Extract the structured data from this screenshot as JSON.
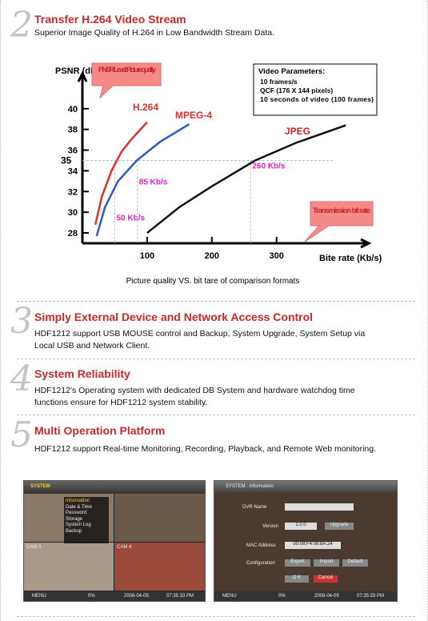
{
  "sections": [
    {
      "number": "2",
      "title": "Transfer H.264 Video Stream",
      "text": "Superior Image Quality of H.264  in Low Bandwidth Stream Data."
    },
    {
      "number": "3",
      "title": "Simply External Device and Network Access Control",
      "text": "HDF1212 support USB MOUSE control and Backup, System Upgrade, System Setup via Local USB and Network Client."
    },
    {
      "number": "4",
      "title": "System Reliability",
      "text": "HDF1212's Operating system with dedicated DB System and hardware watchdog time functions ensure for HDF1212 system stability."
    },
    {
      "number": "5",
      "title": "Multi Operation Platform",
      "text": "HDF1212 support Real-time Monitoring, Recording, Playback, and Remote Web monitoring."
    }
  ],
  "chart_data": {
    "type": "line",
    "caption": "Picture quality VS. bit tare of comparison formats",
    "y_label": "PSNR (dB)",
    "x_label": "Bite rate (Kb/s)",
    "xlim": [
      0,
      440
    ],
    "ylim": [
      27,
      43
    ],
    "xticks": [
      100,
      200,
      300
    ],
    "yticks": [
      28,
      30,
      32,
      34,
      36,
      38,
      40
    ],
    "reference_y": 35,
    "markers": [
      {
        "value": 50,
        "label": "50 Kb/s"
      },
      {
        "value": 85,
        "label": "85 Kb/s"
      },
      {
        "value": 260,
        "label": "260 Kb/s"
      }
    ],
    "series": [
      {
        "name": "H.264",
        "color": "#e0302a",
        "x": [
          20,
          30,
          45,
          60,
          75,
          100
        ],
        "values": [
          28.8,
          31.5,
          34,
          35.8,
          37,
          38.7
        ]
      },
      {
        "name": "MPEG-4",
        "color": "#2a5cc8",
        "x": [
          22,
          35,
          55,
          84,
          120,
          165
        ],
        "values": [
          27.7,
          30.5,
          33,
          35,
          36.8,
          38.5
        ]
      },
      {
        "name": "JPEG",
        "color": "#111111",
        "x": [
          100,
          150,
          200,
          267,
          330,
          407
        ],
        "values": [
          28,
          30.5,
          32.5,
          35,
          36.7,
          38.4
        ]
      }
    ],
    "callout_quality": "PNSR Level: Picture quality",
    "callout_rate": "Transmission bit rate",
    "params_title": "Video Parameters:",
    "params": [
      "10 frames/s",
      "QCF (176 X 144 pixels)",
      "10 seconds of video (100 frames)"
    ]
  },
  "screens": {
    "left": {
      "menu": "SYSTEM",
      "items": [
        "Information",
        "Date & Time",
        "Password",
        "Storage",
        "System Log",
        "Backup"
      ],
      "cam_a": "CAM 3",
      "cam_b": "CAM 4",
      "bar": [
        "MENU",
        "0%",
        "2008-04-09",
        "07:35:33 PM"
      ]
    },
    "right": {
      "title": "SYSTEM : Information",
      "dvr_name": "DVR Name",
      "version": "Version",
      "version_value": "1.0.0",
      "upgrade": "Upgrade",
      "mac": "MAC Address",
      "mac_value": "00:08:F4:08:8A:24",
      "configuration": "Configuration",
      "buttons": [
        "Export",
        "Import",
        "Default"
      ],
      "ok": "O K",
      "cancel": "Cancel",
      "bar": [
        "MENU",
        "0%",
        "2008-04-09",
        "07:35:33 PM"
      ]
    }
  }
}
